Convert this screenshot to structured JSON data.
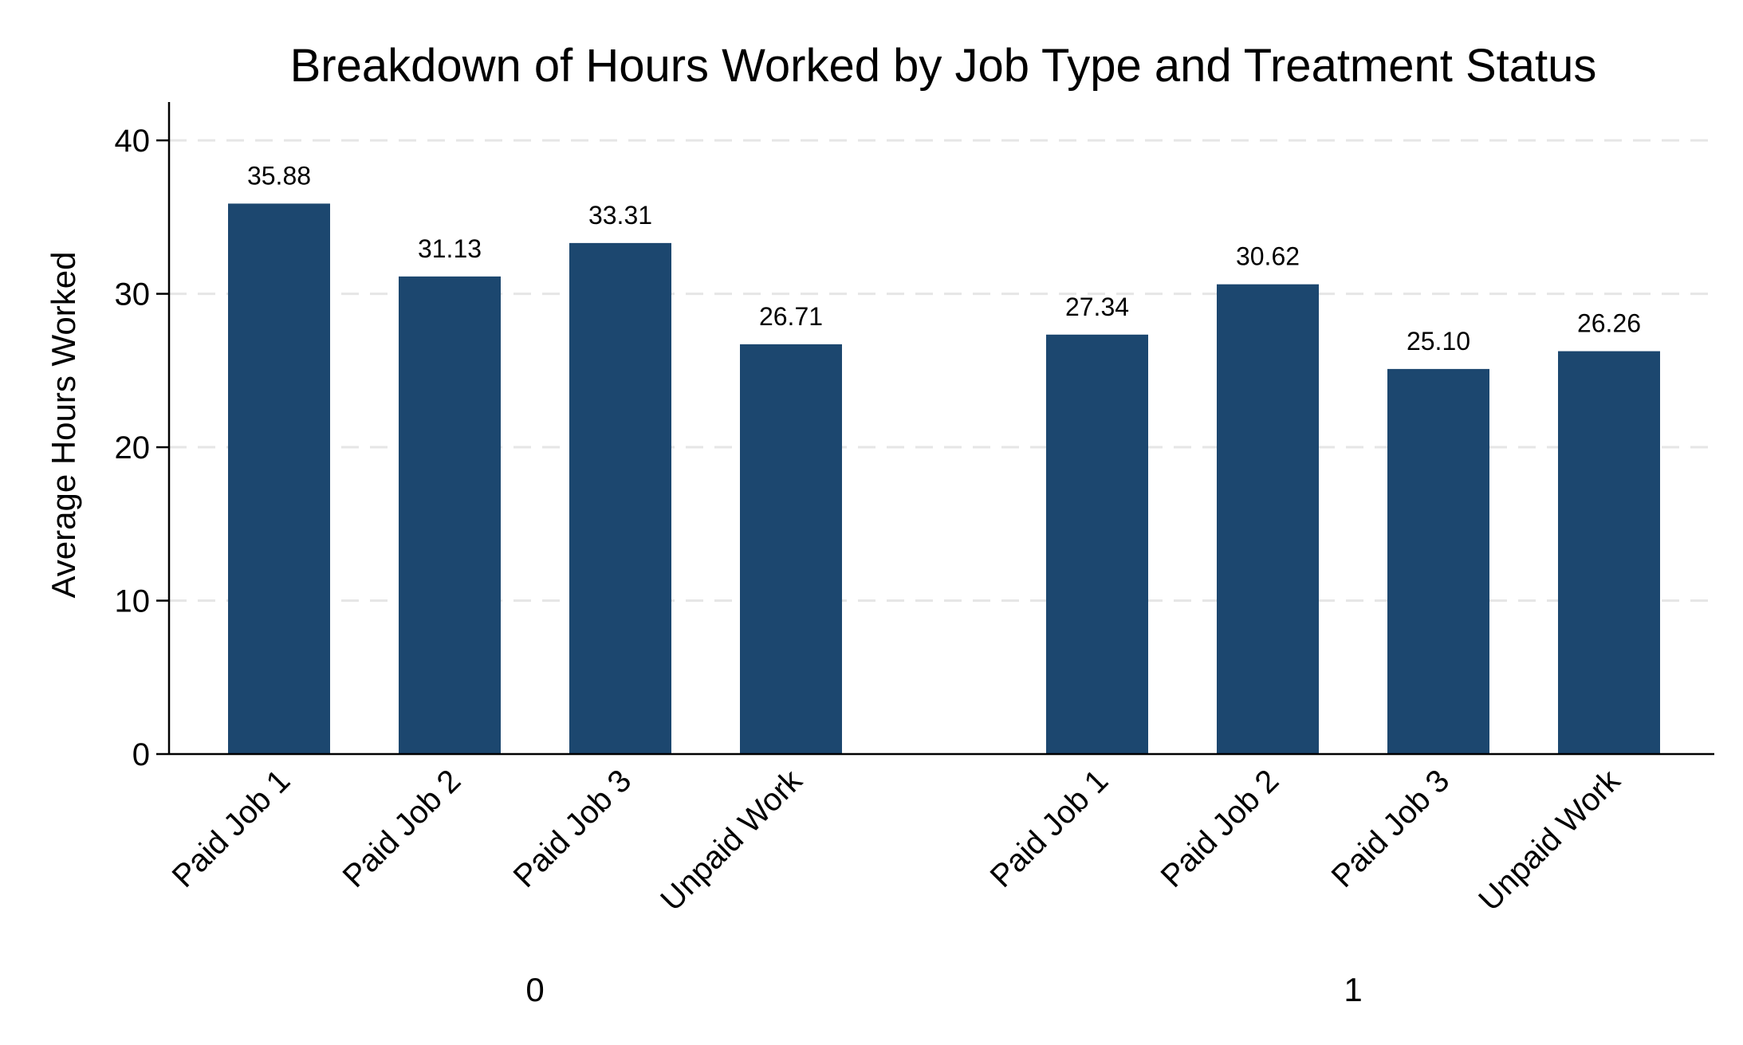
{
  "chart_data": {
    "type": "bar",
    "title": "Breakdown of Hours Worked by Job Type and Treatment Status",
    "ylabel": "Average Hours Worked",
    "xlabel": "",
    "ylim": [
      0,
      42.5
    ],
    "yticks": [
      0,
      10,
      20,
      30,
      40
    ],
    "grid": true,
    "bar_color": "#1c476f",
    "groups": [
      {
        "label": "0",
        "categories": [
          "Paid Job 1",
          "Paid Job 2",
          "Paid Job 3",
          "Unpaid Work"
        ],
        "values": [
          35.88,
          31.13,
          33.31,
          26.71
        ],
        "value_labels": [
          "35.88",
          "31.13",
          "33.31",
          "26.71"
        ]
      },
      {
        "label": "1",
        "categories": [
          "Paid Job 1",
          "Paid Job 2",
          "Paid Job 3",
          "Unpaid Work"
        ],
        "values": [
          27.34,
          30.62,
          25.1,
          26.26
        ],
        "value_labels": [
          "27.34",
          "30.62",
          "25.10",
          "26.26"
        ]
      }
    ]
  }
}
